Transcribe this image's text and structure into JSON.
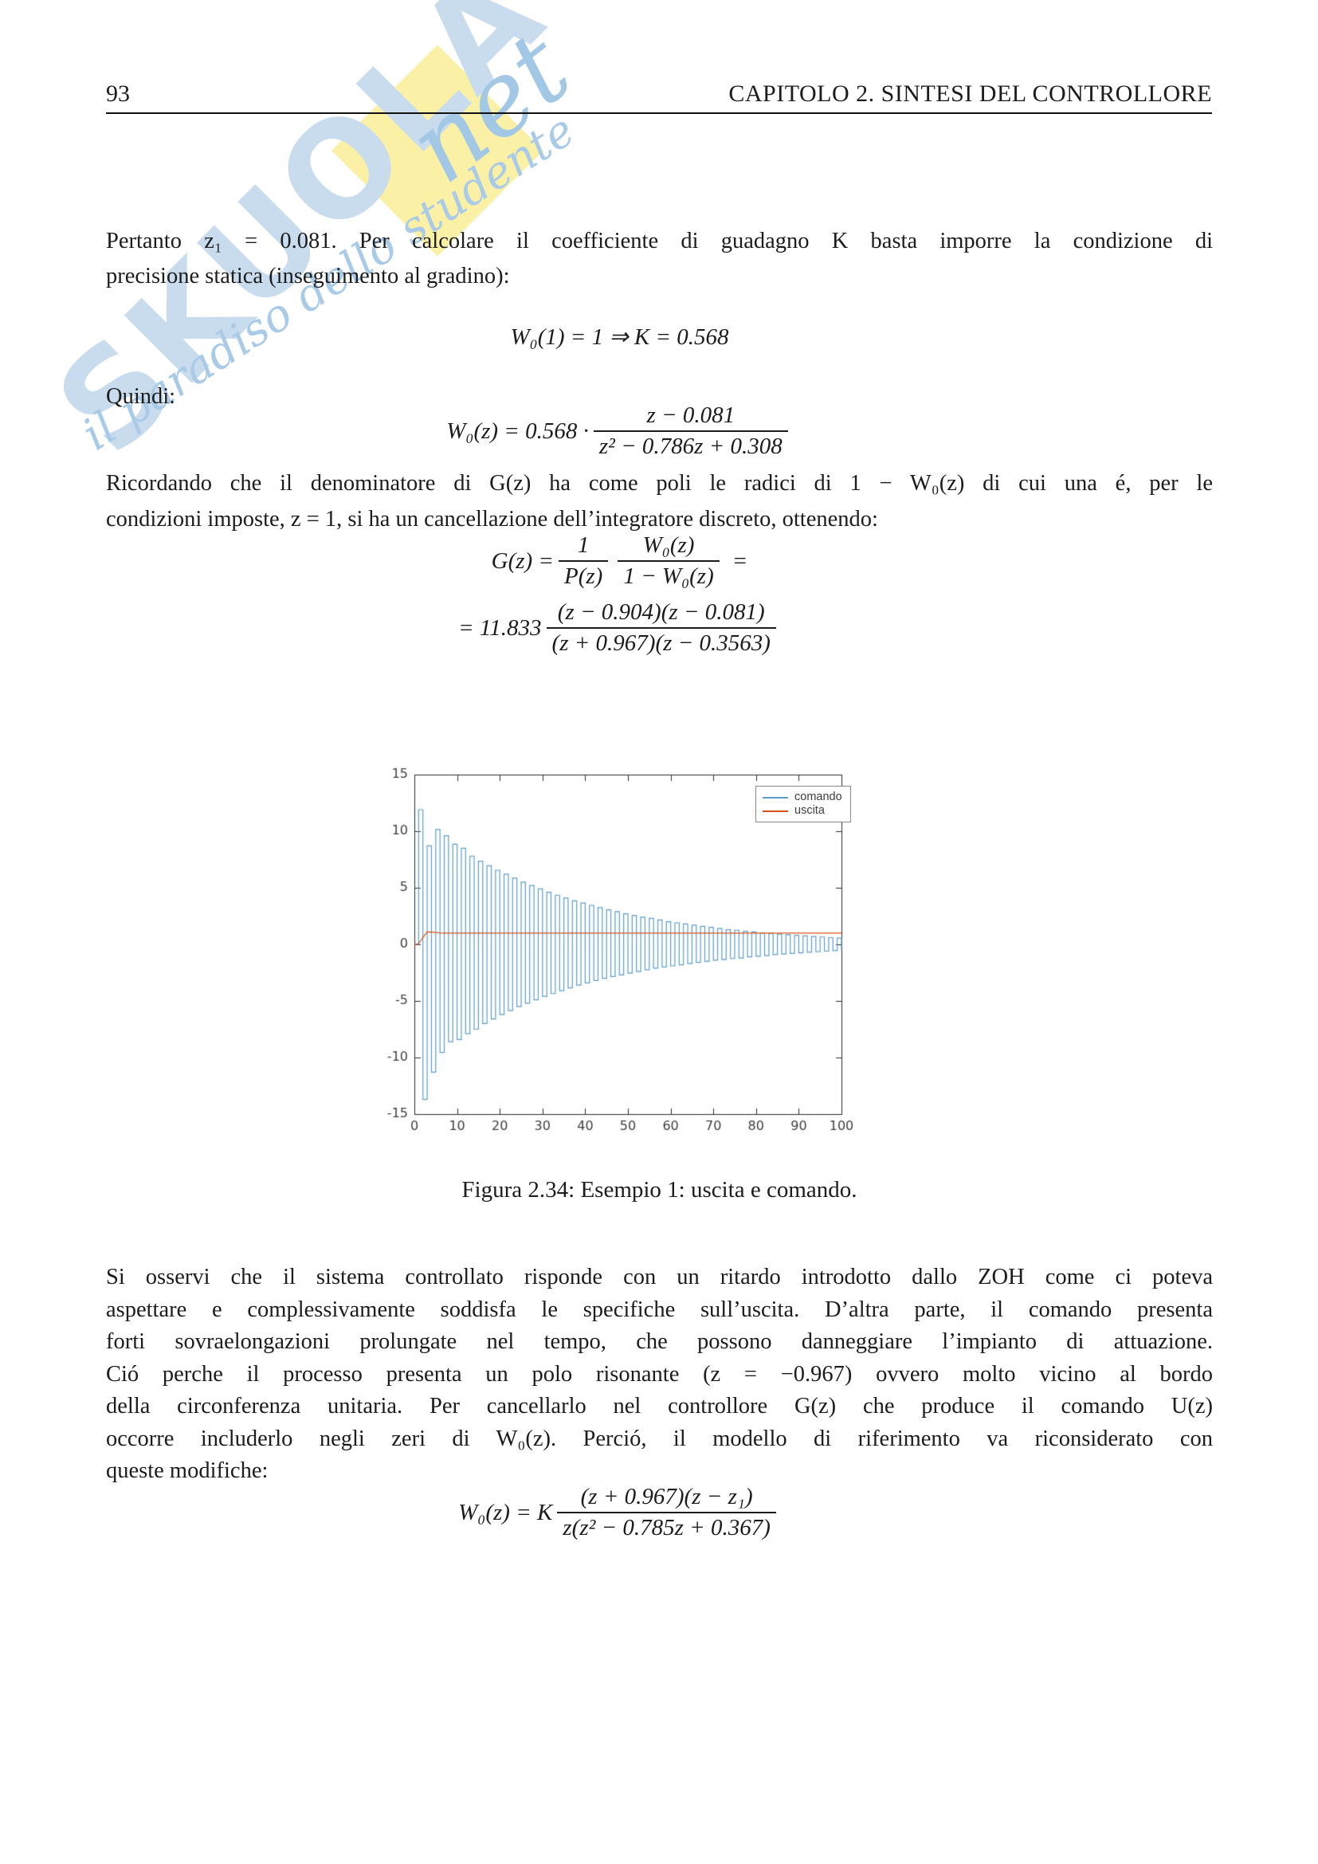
{
  "page": {
    "number": "93",
    "chapter_header": "CAPITOLO 2.  SINTESI DEL CONTROLLORE"
  },
  "watermark": {
    "brand": "Skuola",
    "net": "net",
    "tagline": "il paradiso dello studente"
  },
  "content": {
    "para1": {
      "lines": [
        "Pertanto z₁ = 0.081.  Per calcolare il coefficiente di guadagno K basta imporre la condizione di",
        "precisione statica (inseguimento al gradino):"
      ]
    },
    "formula1": "W₀(1) = 1 ⇒ K = 0.568",
    "quindi_label": "Quindi:",
    "formula2": {
      "lhs": "W₀(z) = 0.568 ·",
      "num": "z − 0.081",
      "den": "z² − 0.786z + 0.308"
    },
    "para2": {
      "lines": [
        "Ricordando che il denominatore di G(z) ha come poli le radici di 1 − W₀(z) di cui una é, per le",
        "condizioni imposte, z = 1, si ha un cancellazione dell’integratore discreto, ottenendo:"
      ]
    },
    "formula3": {
      "line1": {
        "lhs": "G(z) =",
        "frac1_num": "1",
        "frac1_den": "P(z)",
        "frac2_num": "W₀(z)",
        "frac2_den": "1 − W₀(z)",
        "tail": "="
      },
      "line2": {
        "lhs": "= 11.833",
        "num": "(z − 0.904)(z − 0.081)",
        "den": "(z + 0.967)(z − 0.3563)"
      }
    },
    "caption": "Figura 2.34: Esempio 1: uscita e comando.",
    "para3": {
      "lines": [
        "Si osservi che il sistema controllato risponde con un ritardo introdotto dallo ZOH come ci poteva",
        "aspettare e complessivamente soddisfa le specifiche sull’uscita.  D’altra parte, il comando presenta",
        "forti sovraelongazioni prolungate nel tempo, che possono danneggiare l’impianto di attuazione.",
        "Ció perche il processo presenta un polo risonante (z = −0.967) ovvero molto vicino al bordo",
        "della circonferenza unitaria.  Per cancellarlo nel controllore G(z) che produce il comando U(z)",
        "occorre includerlo negli zeri di W₀(z).  Perció, il modello di riferimento va riconsiderato con",
        "queste modifiche:"
      ]
    },
    "formula4": {
      "lhs": "W₀(z) = K",
      "num": "(z + 0.967)(z − z₁)",
      "den": "z(z² − 0.785z + 0.367)"
    }
  },
  "chart_data": {
    "type": "line",
    "style": "stairs",
    "title": "",
    "xlabel": "",
    "ylabel": "",
    "xlim": [
      0,
      100
    ],
    "ylim": [
      -15,
      15
    ],
    "xticks": [
      0,
      10,
      20,
      30,
      40,
      50,
      60,
      70,
      80,
      90,
      100
    ],
    "yticks": [
      -15,
      -10,
      -5,
      0,
      5,
      10,
      15
    ],
    "grid": false,
    "axis_color": "#2b2b2b",
    "tick_label_color": "#3d3d3d",
    "legend": {
      "position": "top-right",
      "entries": [
        {
          "label": "comando",
          "color": "#5b9dc9"
        },
        {
          "label": "uscita",
          "color": "#d95319"
        }
      ]
    },
    "series": [
      {
        "name": "comando",
        "type": "stairs",
        "color": "#5b9dc9",
        "x_start": 0,
        "x_step": 1,
        "values": [
          0,
          11.9,
          -13.7,
          8.7,
          -11.3,
          10.15,
          -9.55,
          9.6,
          -8.6,
          8.85,
          -8.4,
          8.5,
          -7.9,
          7.8,
          -7.5,
          7.35,
          -7.0,
          6.95,
          -6.6,
          6.55,
          -6.2,
          6.2,
          -5.85,
          5.85,
          -5.5,
          5.5,
          -5.2,
          5.2,
          -4.9,
          4.9,
          -4.6,
          4.6,
          -4.35,
          4.35,
          -4.1,
          4.1,
          -3.85,
          3.85,
          -3.6,
          3.65,
          -3.4,
          3.45,
          -3.2,
          3.25,
          -3.0,
          3.05,
          -2.85,
          2.9,
          -2.7,
          2.7,
          -2.55,
          2.55,
          -2.4,
          2.4,
          -2.25,
          2.3,
          -2.1,
          2.15,
          -2.0,
          2.0,
          -1.9,
          1.9,
          -1.8,
          1.8,
          -1.7,
          1.7,
          -1.6,
          1.6,
          -1.5,
          1.5,
          -1.4,
          1.4,
          -1.35,
          1.3,
          -1.25,
          1.25,
          -1.2,
          1.15,
          -1.1,
          1.1,
          -1.05,
          1.0,
          -1.0,
          0.95,
          -0.9,
          0.9,
          -0.85,
          0.85,
          -0.8,
          0.8,
          -0.75,
          0.75,
          -0.7,
          0.7,
          -0.65,
          0.65,
          -0.6,
          0.6,
          -0.55,
          0.55,
          -0.5
        ]
      },
      {
        "name": "uscita",
        "type": "line",
        "color": "#d95319",
        "x_start": 0,
        "x_step": 1,
        "values_head": [
          0,
          0.05,
          0.6,
          1.08,
          1.1,
          1.05,
          1.01,
          1.0
        ],
        "steady_value": 1.0,
        "n_points": 101
      }
    ]
  }
}
